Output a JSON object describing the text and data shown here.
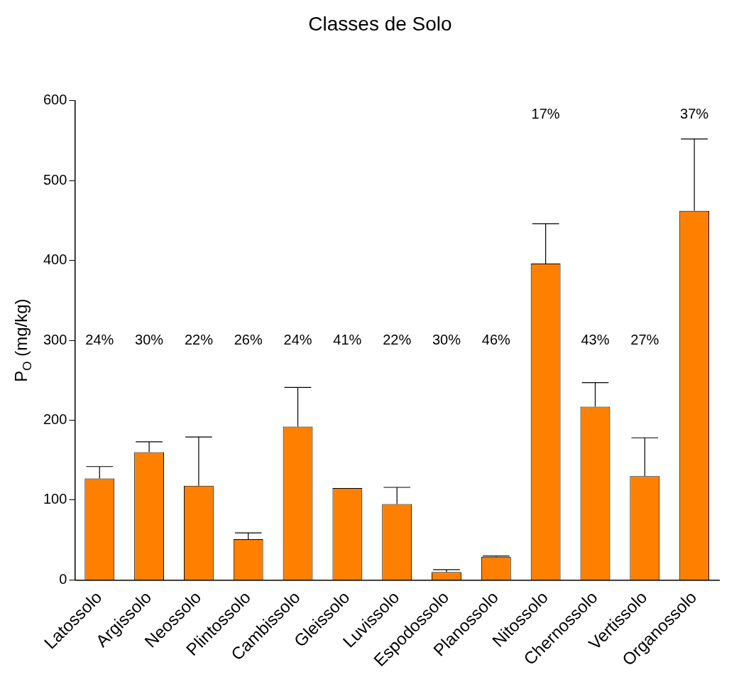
{
  "chart_data": {
    "type": "bar",
    "title": "Classes de Solo",
    "ylabel": "P$_{O}$ (mg/kg)",
    "categories": [
      "Latossolo",
      "Argissolo",
      "Neossolo",
      "Plintossolo",
      "Cambissolo",
      "Gleissolo",
      "Luvissolo",
      "Espodossolo",
      "Planossolo",
      "Nitossolo",
      "Chernossolo",
      "Vertissolo",
      "Organossolo"
    ],
    "values": [
      127,
      160,
      118,
      51,
      192,
      115,
      95,
      10,
      29,
      396,
      217,
      130,
      462
    ],
    "errors": [
      [
        127,
        142
      ],
      [
        160,
        173
      ],
      [
        118,
        179
      ],
      [
        51,
        59
      ],
      [
        192,
        241
      ],
      null,
      [
        95,
        116
      ],
      [
        10,
        13
      ],
      [
        29,
        30
      ],
      [
        396,
        446
      ],
      [
        217,
        247
      ],
      [
        130,
        178
      ],
      [
        462,
        552
      ]
    ],
    "color": "#ff8000",
    "ylim": [
      0,
      600
    ],
    "yticks": [
      0,
      100,
      200,
      300,
      400,
      500,
      600
    ],
    "grid": false,
    "legend": false,
    "annotations": [
      "24%",
      "30%",
      "22%",
      "26%",
      "24%",
      "41%",
      "22%",
      "30%",
      "46%",
      "17%",
      "43%",
      "27%",
      "37%"
    ]
  }
}
